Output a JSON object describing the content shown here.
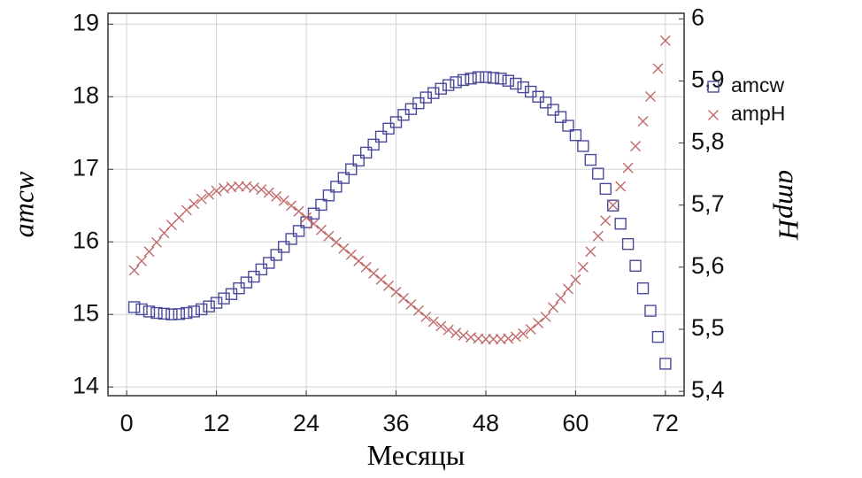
{
  "chart_data": {
    "type": "scatter",
    "x_label": "Месяцы",
    "y_label": "amcw",
    "y2_label": "ampH",
    "x": [
      1,
      2,
      3,
      4,
      5,
      6,
      7,
      8,
      9,
      10,
      11,
      12,
      13,
      14,
      15,
      16,
      17,
      18,
      19,
      20,
      21,
      22,
      23,
      24,
      25,
      26,
      27,
      28,
      29,
      30,
      31,
      32,
      33,
      34,
      35,
      36,
      37,
      38,
      39,
      40,
      41,
      42,
      43,
      44,
      45,
      46,
      47,
      48,
      49,
      50,
      51,
      52,
      53,
      54,
      55,
      56,
      57,
      58,
      59,
      60,
      61,
      62,
      63,
      64,
      65,
      66,
      67,
      68,
      69,
      70,
      71,
      72
    ],
    "series": [
      {
        "name": "amcw",
        "color": "#4a4a9a",
        "marker": "square",
        "values": [
          15.1,
          15.07,
          15.04,
          15.02,
          15.01,
          15.0,
          15.005,
          15.02,
          15.04,
          15.07,
          15.11,
          15.16,
          15.22,
          15.28,
          15.36,
          15.44,
          15.52,
          15.62,
          15.71,
          15.82,
          15.93,
          16.04,
          16.15,
          16.27,
          16.39,
          16.51,
          16.64,
          16.76,
          16.88,
          17.0,
          17.12,
          17.23,
          17.34,
          17.45,
          17.56,
          17.65,
          17.75,
          17.83,
          17.91,
          17.99,
          18.05,
          18.11,
          18.16,
          18.2,
          18.23,
          18.25,
          18.27,
          18.27,
          18.26,
          18.25,
          18.22,
          18.18,
          18.13,
          18.07,
          18.0,
          17.92,
          17.82,
          17.72,
          17.6,
          17.47,
          17.32,
          17.13,
          16.94,
          16.73,
          16.5,
          16.25,
          15.97,
          15.67,
          15.36,
          15.05,
          14.69,
          14.32
        ]
      },
      {
        "name": "ampH",
        "color": "#c06a6a",
        "marker": "x",
        "axis": "y2",
        "values": [
          5.595,
          5.61,
          5.625,
          5.64,
          5.655,
          5.668,
          5.68,
          5.692,
          5.702,
          5.71,
          5.717,
          5.723,
          5.727,
          5.729,
          5.73,
          5.73,
          5.728,
          5.725,
          5.72,
          5.714,
          5.707,
          5.699,
          5.69,
          5.68,
          5.67,
          5.66,
          5.65,
          5.64,
          5.63,
          5.62,
          5.61,
          5.6,
          5.59,
          5.58,
          5.57,
          5.56,
          5.55,
          5.54,
          5.53,
          5.52,
          5.512,
          5.505,
          5.499,
          5.494,
          5.49,
          5.487,
          5.485,
          5.484,
          5.484,
          5.484,
          5.485,
          5.488,
          5.493,
          5.5,
          5.51,
          5.52,
          5.535,
          5.55,
          5.565,
          5.58,
          5.6,
          5.625,
          5.65,
          5.675,
          5.7,
          5.73,
          5.76,
          5.795,
          5.835,
          5.875,
          5.92,
          5.965
        ]
      }
    ],
    "xlim": [
      -2.5,
      74.5
    ],
    "xticks": [
      0,
      12,
      24,
      36,
      48,
      60,
      72
    ],
    "ylim": [
      13.88,
      19.15
    ],
    "yticks": [
      14,
      15,
      16,
      17,
      18,
      19
    ],
    "y2lim": [
      5.393,
      6.009
    ],
    "y2ticks": [
      {
        "value": 5.4,
        "label": "5,4"
      },
      {
        "value": 5.5,
        "label": "5,5"
      },
      {
        "value": 5.6,
        "label": "5,6"
      },
      {
        "value": 5.7,
        "label": "5,7"
      },
      {
        "value": 5.8,
        "label": "5,8"
      },
      {
        "value": 5.9,
        "label": "5,9"
      },
      {
        "value": 6,
        "label": "6"
      }
    ],
    "grid": true
  }
}
